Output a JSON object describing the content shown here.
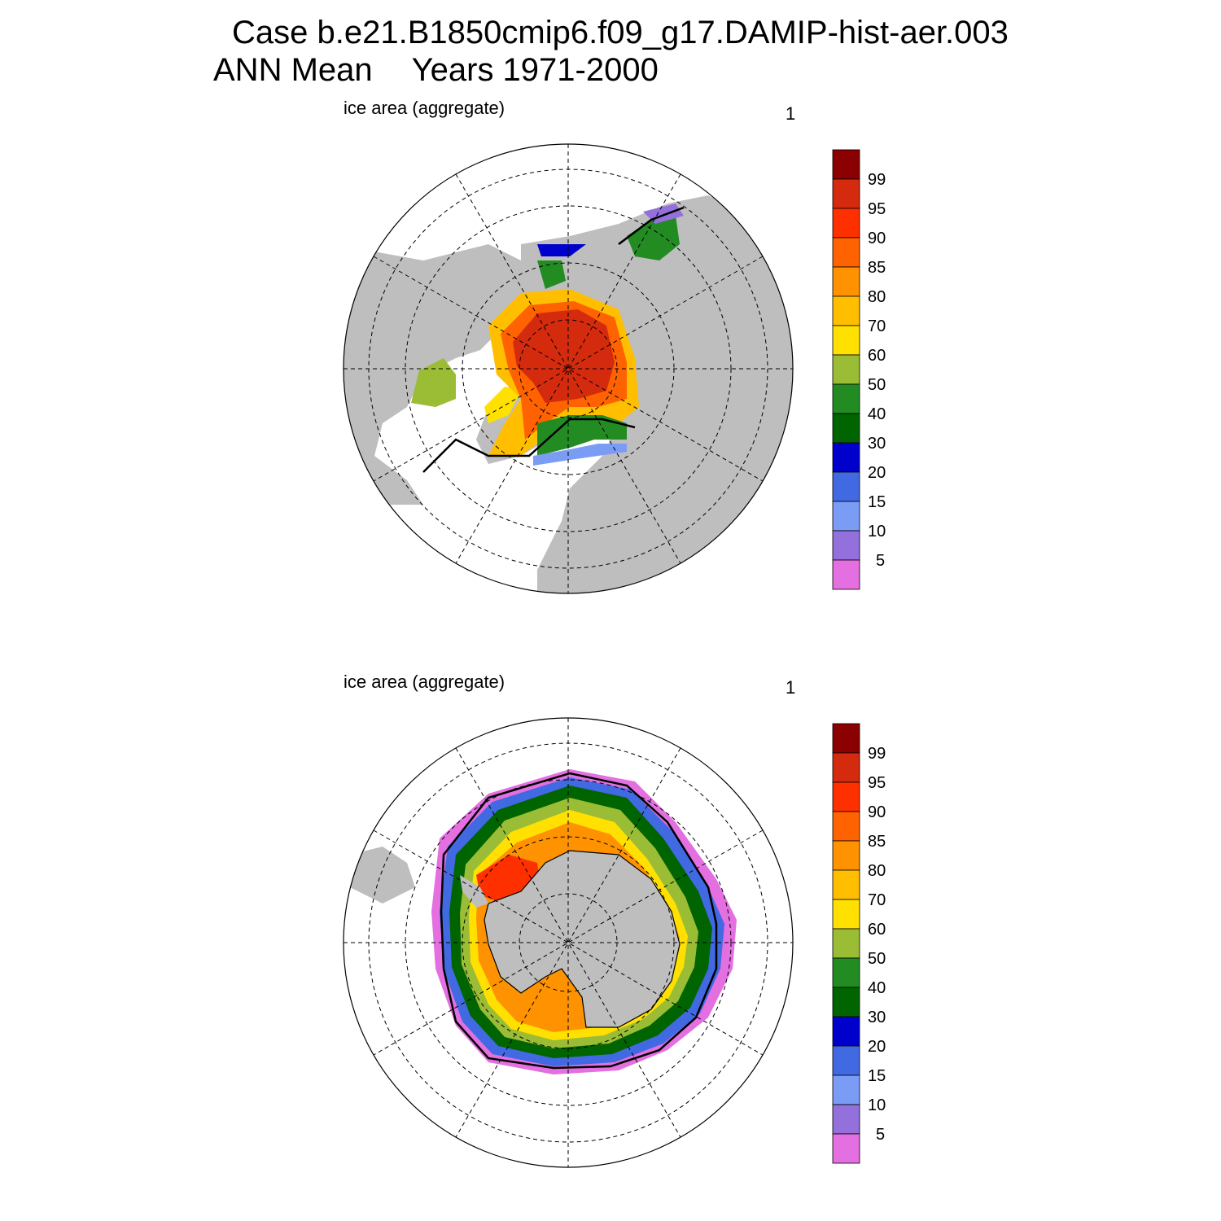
{
  "header": {
    "case_line": "Case b.e21.B1850cmip6.f09_g17.DAMIP-hist-aer.003",
    "season": "ANN Mean",
    "years": "Years 1971-2000"
  },
  "panels": [
    {
      "id": "north",
      "label": "ice area  (aggregate)",
      "corner": "1"
    },
    {
      "id": "south",
      "label": "ice area  (aggregate)",
      "corner": "1"
    }
  ],
  "colorbar": {
    "labels": [
      "99",
      "95",
      "90",
      "85",
      "80",
      "70",
      "60",
      "50",
      "40",
      "30",
      "20",
      "15",
      "10",
      "5"
    ],
    "colors": [
      "#8b0000",
      "#d42a0e",
      "#ff3000",
      "#ff6200",
      "#ff9200",
      "#ffbf00",
      "#ffe000",
      "#9abd35",
      "#228b22",
      "#006400",
      "#0000cd",
      "#4169e1",
      "#7b9cf5",
      "#9370db",
      "#e36fe0"
    ]
  },
  "colors": {
    "land": "#bebebe",
    "ocean": "#ffffff",
    "extent_line": "#000000"
  }
}
